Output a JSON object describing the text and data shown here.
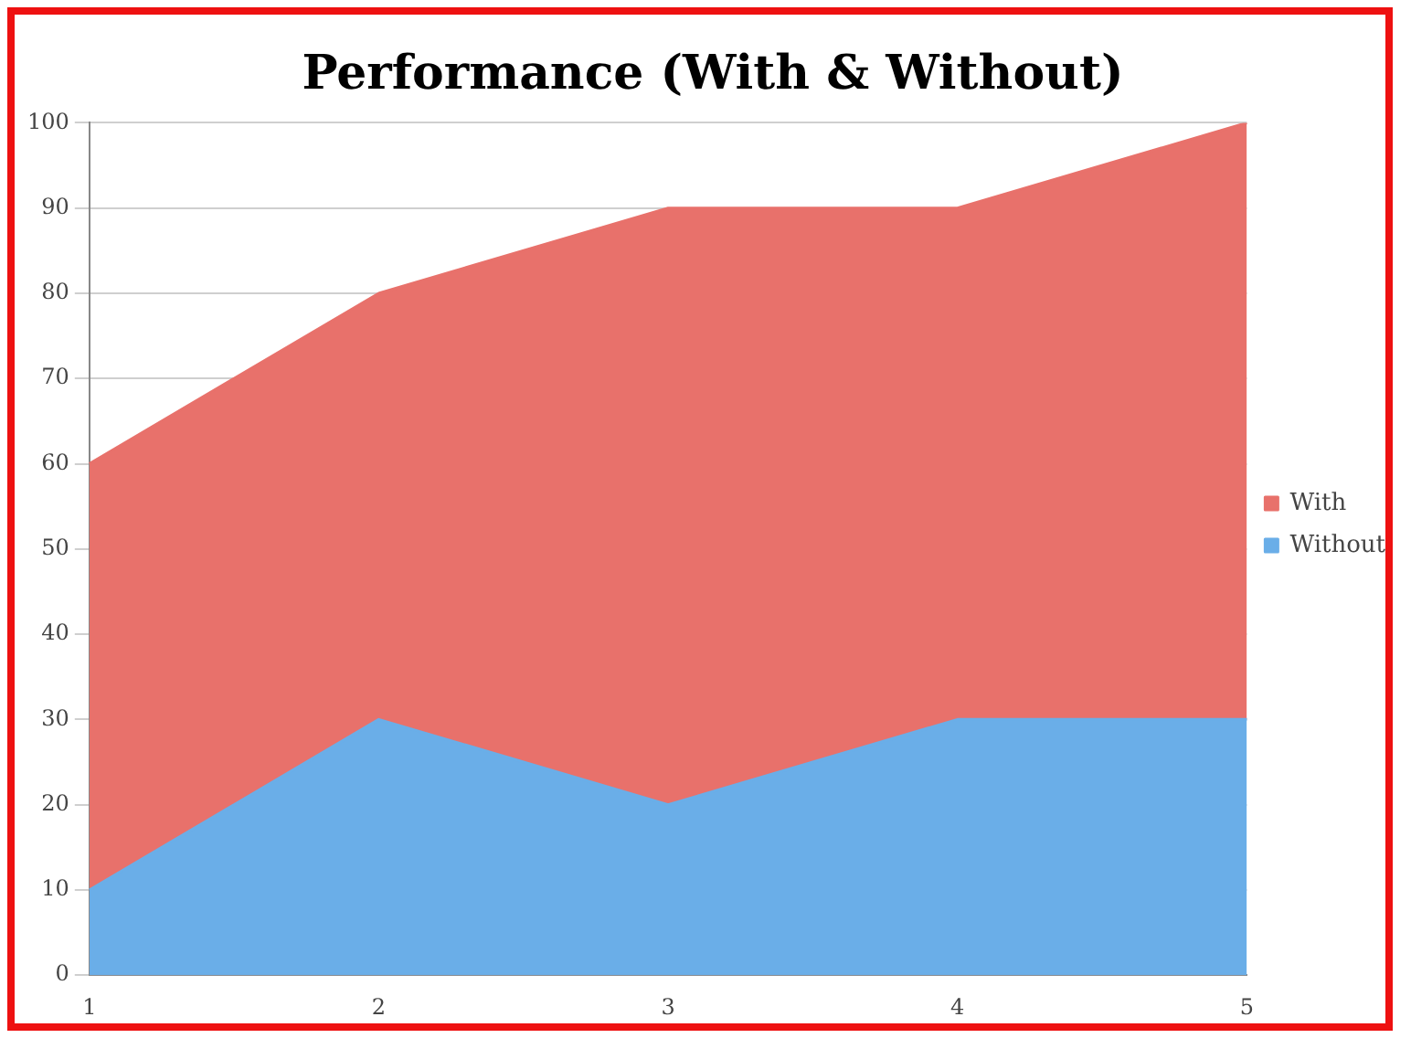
{
  "chart_data": {
    "type": "area",
    "title": "Performance (With & Without)",
    "categories": [
      "1",
      "2",
      "3",
      "4",
      "5"
    ],
    "series": [
      {
        "name": "Without",
        "color": "#6aaee8",
        "values": [
          10,
          30,
          20,
          30,
          30
        ]
      },
      {
        "name": "With",
        "color": "#e8716b",
        "values": [
          60,
          80,
          90,
          90,
          100
        ]
      }
    ],
    "ylim": [
      0,
      100
    ],
    "yticks": [
      0,
      10,
      20,
      30,
      40,
      50,
      60,
      70,
      80,
      90,
      100
    ],
    "grid": "y",
    "legend": "right"
  }
}
